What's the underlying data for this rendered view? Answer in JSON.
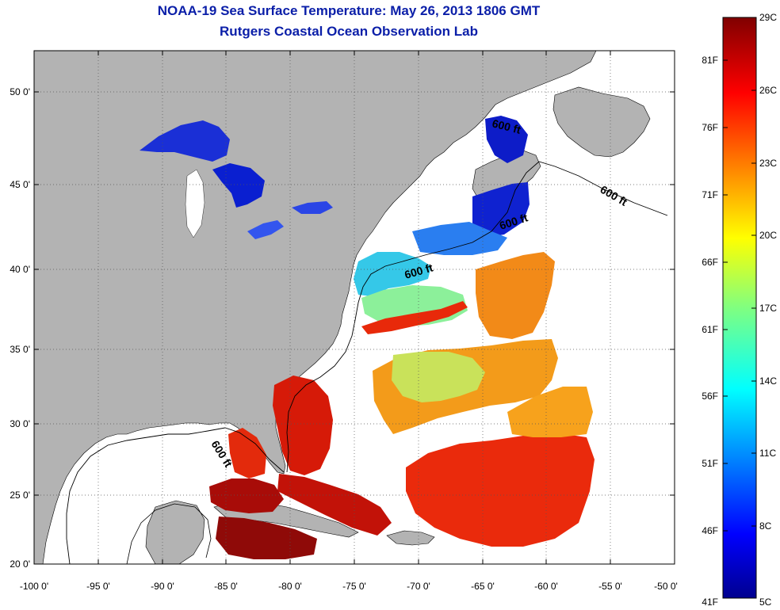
{
  "header": {
    "title": "NOAA-19 Sea Surface Temperature:  May 26, 2013 1806 GMT",
    "subtitle": "Rutgers Coastal Ocean Observation Lab"
  },
  "map": {
    "lon_ticks": [
      "-100 0'",
      "-95 0'",
      "-90 0'",
      "-85 0'",
      "-80 0'",
      "-75 0'",
      "-70 0'",
      "-65 0'",
      "-60 0'",
      "-55 0'",
      "-50 0'"
    ],
    "lat_ticks": [
      "50 0'",
      "45 0'",
      "40 0'",
      "35 0'",
      "30 0'",
      "25 0'",
      "20 0'"
    ],
    "lon_range": [
      -100,
      -50
    ],
    "lat_range": [
      20,
      52.5
    ],
    "grid": "dotted",
    "contour_labels": [
      "600 ft",
      "600 ft",
      "600 ft",
      "600 ft",
      "600 ft"
    ],
    "colors": {
      "land": "#b3b3b3",
      "no_data": "#ffffff",
      "title": "#0a1ea8"
    }
  },
  "colorbar": {
    "celsius": [
      "29C",
      "26C",
      "23C",
      "20C",
      "17C",
      "14C",
      "11C",
      "8C",
      "5C"
    ],
    "fahrenheit": [
      "81F",
      "76F",
      "71F",
      "66F",
      "61F",
      "56F",
      "51F",
      "46F",
      "41F"
    ],
    "range_c": [
      5,
      29
    ]
  }
}
